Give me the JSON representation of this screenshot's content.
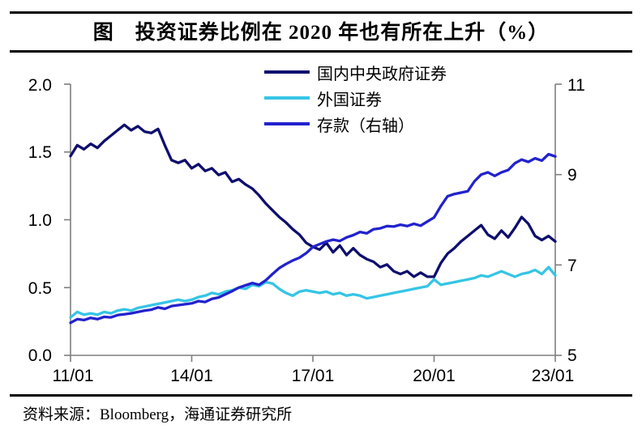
{
  "header": {
    "title": "图　投资证券比例在 2020 年也有所在上升（%）"
  },
  "footer": {
    "source": "资料来源：Bloomberg，海通证券研究所"
  },
  "chart_data": {
    "type": "line",
    "grid": false,
    "legend_position": "top-center-vertical",
    "x_start": "2011-01",
    "x_end": "2023-01",
    "x_step_months": 2,
    "x_tick_labels": [
      "11/01",
      "14/01",
      "17/01",
      "20/01",
      "23/01"
    ],
    "left_axis": {
      "min": 0.0,
      "max": 2.0,
      "ticks": [
        "2.0",
        "1.5",
        "1.0",
        "0.5",
        "0.0"
      ]
    },
    "right_axis": {
      "min": 5,
      "max": 11,
      "ticks": [
        "11",
        "9",
        "7",
        "5"
      ]
    },
    "axis_color": "#7f7f7f",
    "series": [
      {
        "id": "domestic-central-govt-securities",
        "name": "国内中央政府证券",
        "axis": "left",
        "color": "#0e0e6e",
        "values": [
          1.47,
          1.55,
          1.52,
          1.56,
          1.53,
          1.58,
          1.62,
          1.66,
          1.7,
          1.66,
          1.69,
          1.65,
          1.64,
          1.67,
          1.55,
          1.44,
          1.42,
          1.44,
          1.38,
          1.41,
          1.36,
          1.38,
          1.33,
          1.35,
          1.28,
          1.3,
          1.26,
          1.23,
          1.18,
          1.12,
          1.07,
          1.02,
          0.98,
          0.93,
          0.89,
          0.83,
          0.8,
          0.78,
          0.83,
          0.76,
          0.81,
          0.74,
          0.79,
          0.74,
          0.71,
          0.69,
          0.65,
          0.67,
          0.62,
          0.6,
          0.62,
          0.58,
          0.61,
          0.58,
          0.58,
          0.68,
          0.75,
          0.79,
          0.84,
          0.88,
          0.92,
          0.96,
          0.89,
          0.86,
          0.92,
          0.87,
          0.94,
          1.02,
          0.97,
          0.88,
          0.85,
          0.88,
          0.84
        ]
      },
      {
        "id": "foreign-securities",
        "name": "外国证券",
        "axis": "left",
        "color": "#35c5e5",
        "values": [
          0.28,
          0.32,
          0.3,
          0.31,
          0.3,
          0.32,
          0.31,
          0.33,
          0.34,
          0.33,
          0.35,
          0.36,
          0.37,
          0.38,
          0.39,
          0.4,
          0.41,
          0.4,
          0.41,
          0.43,
          0.44,
          0.46,
          0.45,
          0.47,
          0.48,
          0.5,
          0.49,
          0.52,
          0.51,
          0.54,
          0.53,
          0.49,
          0.46,
          0.44,
          0.47,
          0.48,
          0.47,
          0.46,
          0.47,
          0.45,
          0.46,
          0.44,
          0.45,
          0.44,
          0.42,
          0.43,
          0.44,
          0.45,
          0.46,
          0.47,
          0.48,
          0.49,
          0.5,
          0.51,
          0.56,
          0.52,
          0.53,
          0.54,
          0.55,
          0.56,
          0.57,
          0.59,
          0.58,
          0.6,
          0.62,
          0.6,
          0.58,
          0.6,
          0.61,
          0.63,
          0.6,
          0.65,
          0.59
        ]
      },
      {
        "id": "deposits-right-axis",
        "name": "存款（右轴）",
        "axis": "right",
        "color": "#2222ce",
        "values": [
          5.72,
          5.8,
          5.78,
          5.83,
          5.8,
          5.85,
          5.84,
          5.89,
          5.91,
          5.93,
          5.96,
          5.99,
          6.01,
          6.06,
          6.03,
          6.09,
          6.11,
          6.13,
          6.15,
          6.2,
          6.18,
          6.25,
          6.28,
          6.35,
          6.42,
          6.5,
          6.55,
          6.6,
          6.56,
          6.66,
          6.8,
          6.93,
          7.02,
          7.1,
          7.16,
          7.26,
          7.4,
          7.46,
          7.52,
          7.56,
          7.53,
          7.61,
          7.66,
          7.73,
          7.7,
          7.79,
          7.81,
          7.86,
          7.85,
          7.89,
          7.86,
          7.91,
          7.87,
          7.96,
          8.05,
          8.3,
          8.52,
          8.57,
          8.6,
          8.63,
          8.85,
          9.0,
          9.05,
          8.97,
          9.05,
          9.1,
          9.25,
          9.33,
          9.28,
          9.36,
          9.31,
          9.45,
          9.4
        ]
      }
    ]
  }
}
